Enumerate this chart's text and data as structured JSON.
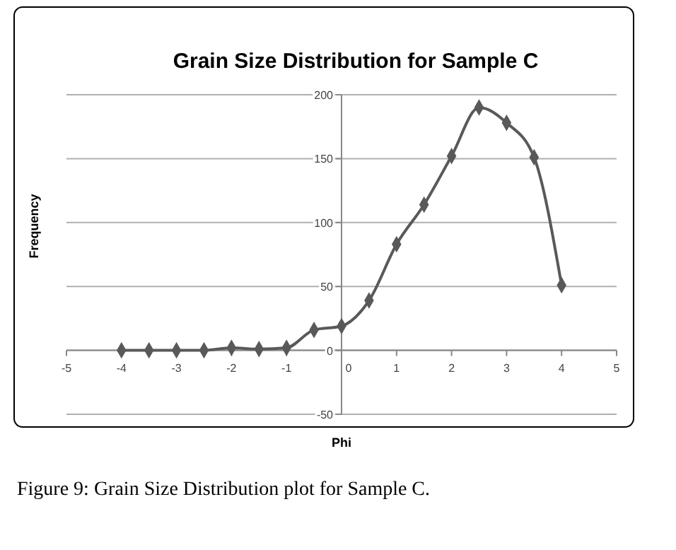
{
  "chart_data": {
    "type": "line",
    "title": "Grain Size Distribution for Sample C",
    "xlabel": "Phi",
    "ylabel": "Frequency",
    "x": [
      -4,
      -3.5,
      -3,
      -2.5,
      -2,
      -1.5,
      -1,
      -0.5,
      0,
      0.5,
      1,
      1.5,
      2,
      2.5,
      3,
      3.5,
      4
    ],
    "series": [
      {
        "color": "#595959",
        "values": [
          0,
          0,
          0,
          0,
          2,
          1,
          2,
          16,
          19,
          39,
          83,
          114,
          152,
          190,
          178,
          151,
          51
        ]
      }
    ],
    "xlim": [
      -5,
      5
    ],
    "xticks": [
      -5,
      -4,
      -3,
      -2,
      -1,
      0,
      1,
      2,
      3,
      4,
      5
    ],
    "ylim": [
      -50,
      200
    ],
    "yticks": [
      -50,
      0,
      50,
      100,
      150,
      200
    ],
    "grid": "y",
    "marker": "diamond",
    "line_style": "solid",
    "annotations": [
      "Figure 9: Grain Size Distribution plot for Sample C."
    ]
  }
}
